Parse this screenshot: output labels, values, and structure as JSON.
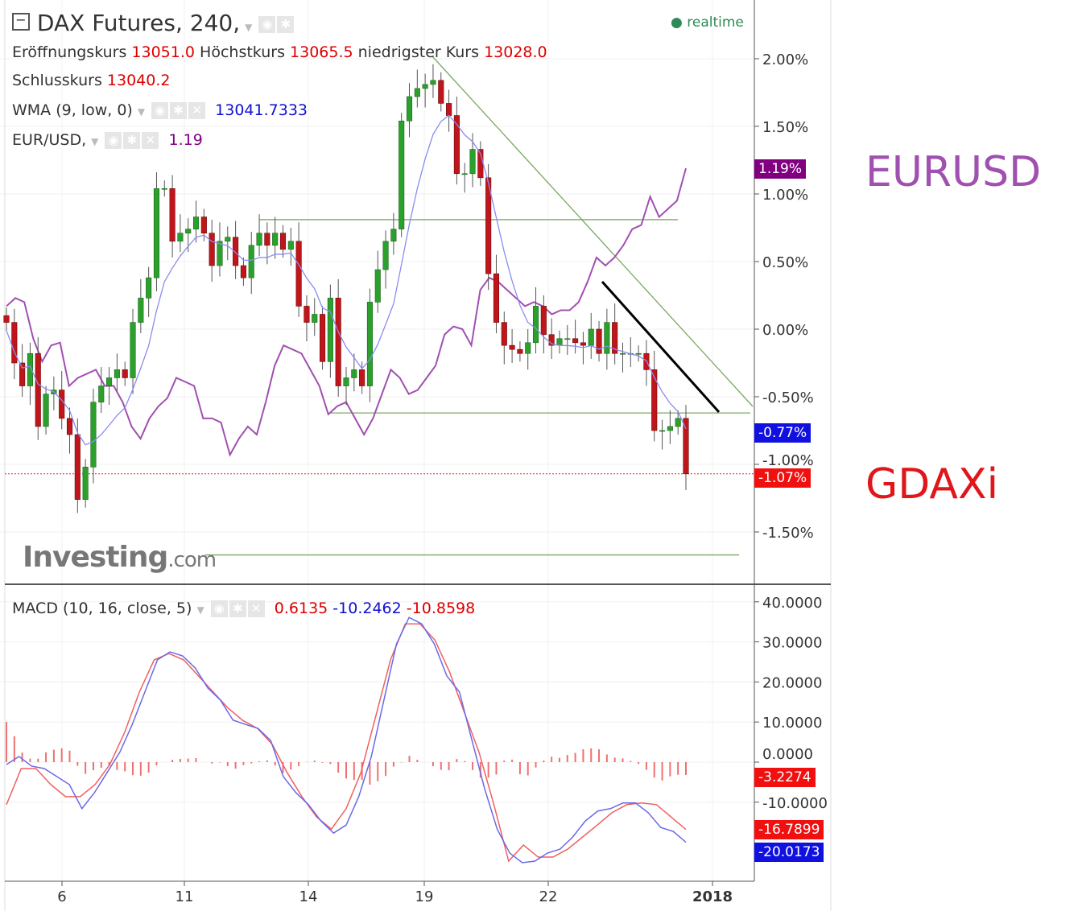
{
  "header": {
    "title": "DAX Futures, 240,",
    "status": "realtime",
    "ohlc": {
      "open_label": "Eröffnungskurs",
      "open": "13051.0",
      "high_label": "Höchstkurs",
      "high": "13065.5",
      "low_label": "niedrigster Kurs",
      "low": "13028.0",
      "close_label": "Schlusskurs",
      "close": "13040.2"
    },
    "wma": {
      "label": "WMA (9, low, 0)",
      "value": "13041.7333"
    },
    "eurusd": {
      "label": "EUR/USD,",
      "value": "1.19"
    },
    "macd": {
      "label": "MACD (10, 16, close, 5)",
      "hist": "0.6135",
      "macd": "-10.2462",
      "signal": "-10.8598"
    }
  },
  "annotations": {
    "eurusd": "EURUSD",
    "gdaxi": "GDAXi"
  },
  "watermark": "Investing.com",
  "colors": {
    "up": "#2ca02c",
    "down": "#c0161b",
    "wma": "#8a8cf0",
    "eurusd": "#a050b0",
    "macd": "#6a6ae8",
    "signal": "#f06060",
    "hist": "#f07070",
    "annotation_eurusd": "#a050b0",
    "annotation_gdaxi": "#e0161b"
  },
  "chart_data": [
    {
      "type": "candlestick",
      "title": "DAX Futures, 240,",
      "ylabel": "",
      "yunit": "%",
      "ylim": [
        -1.9,
        2.4
      ],
      "yticks": [
        "2.00%",
        "1.50%",
        "1.00%",
        "0.50%",
        "0.00%",
        "-0.50%",
        "-1.00%",
        "-1.50%"
      ],
      "xticks": [
        "6",
        "11",
        "14",
        "19",
        "22",
        "2018"
      ],
      "closes": [
        0.05,
        -0.25,
        -0.42,
        -0.18,
        -0.72,
        -0.48,
        -0.45,
        -0.66,
        -0.78,
        -1.26,
        -1.02,
        -0.54,
        -0.42,
        -0.36,
        -0.3,
        -0.36,
        0.05,
        0.23,
        0.38,
        1.04,
        1.04,
        0.65,
        0.71,
        0.74,
        0.83,
        0.71,
        0.47,
        0.65,
        0.68,
        0.47,
        0.38,
        0.62,
        0.71,
        0.62,
        0.71,
        0.59,
        0.65,
        0.17,
        0.05,
        0.11,
        -0.24,
        0.23,
        -0.42,
        -0.36,
        -0.3,
        -0.42,
        0.2,
        0.44,
        0.65,
        0.74,
        1.54,
        1.72,
        1.78,
        1.81,
        1.84,
        1.67,
        1.58,
        1.15,
        1.15,
        1.33,
        1.12,
        0.41,
        0.05,
        -0.12,
        -0.15,
        -0.18,
        -0.1,
        0.17,
        -0.04,
        -0.12,
        -0.07,
        -0.07,
        -0.1,
        -0.12,
        0.0,
        -0.18,
        0.05,
        -0.18,
        -0.18,
        -0.18,
        -0.18,
        -0.3,
        -0.75,
        -0.75,
        -0.72,
        -0.66,
        -1.07
      ],
      "eurusd_pct": [
        0.17,
        0.23,
        0.2,
        -0.07,
        -0.24,
        -0.12,
        -0.1,
        -0.42,
        -0.36,
        -0.33,
        -0.3,
        -0.42,
        -0.42,
        -0.54,
        -0.72,
        -0.81,
        -0.66,
        -0.57,
        -0.51,
        -0.36,
        -0.39,
        -0.42,
        -0.66,
        -0.66,
        -0.69,
        -0.93,
        -0.81,
        -0.72,
        -0.78,
        -0.54,
        -0.27,
        -0.12,
        -0.15,
        -0.18,
        -0.3,
        -0.42,
        -0.63,
        -0.57,
        -0.54,
        -0.66,
        -0.78,
        -0.66,
        -0.48,
        -0.3,
        -0.36,
        -0.48,
        -0.45,
        -0.36,
        -0.27,
        -0.04,
        0.02,
        0.0,
        -0.12,
        0.29,
        0.38,
        0.35,
        0.29,
        0.23,
        0.17,
        0.2,
        0.17,
        0.11,
        0.14,
        0.14,
        0.2,
        0.35,
        0.53,
        0.47,
        0.53,
        0.62,
        0.74,
        0.77,
        0.98,
        0.83,
        0.89,
        0.95,
        1.19
      ],
      "levels_pct": {
        "resistance": 0.81,
        "support": -0.62,
        "bottom": -1.67,
        "last": -1.07
      },
      "tags": {
        "eurusd": "1.19%",
        "wma": "-0.77%",
        "last": "-1.07%"
      }
    },
    {
      "type": "line",
      "title": "MACD (10, 16, close, 5)",
      "ylim": [
        -25,
        45
      ],
      "yticks": [
        "40.0000",
        "30.0000",
        "20.0000",
        "10.0000",
        "0.0000",
        "-10.0000"
      ],
      "macd": [
        -0.6,
        1.4,
        -1.0,
        -1.6,
        -3.6,
        -5.6,
        -11.6,
        -7.6,
        -2.6,
        2.4,
        9.4,
        17.5,
        25.5,
        27.5,
        26.5,
        23.5,
        18.5,
        15.5,
        10.5,
        9.4,
        8.4,
        5.4,
        -3.6,
        -7.6,
        -10.6,
        -14.7,
        -17.7,
        -15.7,
        -8.6,
        1.4,
        15.5,
        29.5,
        36.1,
        34.5,
        29.5,
        21.5,
        17.5,
        5.4,
        -6.6,
        -16.7,
        -22.7,
        -25.1,
        -24.7,
        -22.7,
        -21.7,
        -18.7,
        -14.7,
        -12.2,
        -11.6,
        -10.2,
        -10.2,
        -12.6,
        -16.3,
        -17.3,
        -20.0
      ],
      "signal": [
        -10.6,
        -1.6,
        -1.6,
        -5.6,
        -8.6,
        -8.6,
        -5.6,
        -0.6,
        7.4,
        17.5,
        25.5,
        27.1,
        25.5,
        21.5,
        17.5,
        13.5,
        10.4,
        8.4,
        4.4,
        -2.6,
        -8.6,
        -13.7,
        -16.7,
        -11.6,
        -2.6,
        11.4,
        25.5,
        34.5,
        34.5,
        30.5,
        22.5,
        12.4,
        2.4,
        -10.6,
        -24.7,
        -20.7,
        -23.7,
        -23.7,
        -21.7,
        -18.7,
        -15.7,
        -12.6,
        -10.6,
        -10.2,
        -10.6,
        -13.7,
        -16.8
      ],
      "tags": {
        "hist": "-3.2274",
        "signal": "-16.7899",
        "macd": "-20.0173"
      }
    }
  ]
}
